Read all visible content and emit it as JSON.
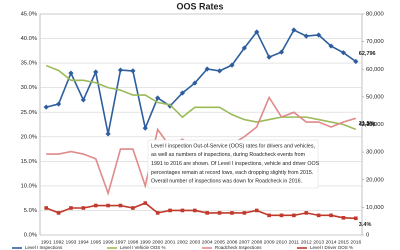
{
  "chart_data": {
    "type": "line",
    "title": "OOS Rates",
    "categories": [
      "1991",
      "1992",
      "1993",
      "1994",
      "1995",
      "1996",
      "1997",
      "1998",
      "1999",
      "2000",
      "2001",
      "2002",
      "2003",
      "2004",
      "2005",
      "2006",
      "2007",
      "2008",
      "2009",
      "2010",
      "2011",
      "2012",
      "2013",
      "2014",
      "2015",
      "2016"
    ],
    "ylim": [
      0,
      45
    ],
    "yticks": [
      {
        "value": 0,
        "label": "0.0%"
      },
      {
        "value": 5,
        "label": "5.0%"
      },
      {
        "value": 10,
        "label": "10.0%"
      },
      {
        "value": 15,
        "label": "15.0%"
      },
      {
        "value": 20,
        "label": "20.0%"
      },
      {
        "value": 25,
        "label": "25.0%"
      },
      {
        "value": 30,
        "label": "30.0%"
      },
      {
        "value": 35,
        "label": "35.0%"
      },
      {
        "value": 40,
        "label": "40.0%"
      },
      {
        "value": 45,
        "label": "45.0%"
      }
    ],
    "y2lim": [
      0,
      80000
    ],
    "y2ticks": [
      0,
      {
        "value": 10000,
        "label": "10,000"
      },
      {
        "value": 20000,
        "label": "20,000"
      },
      {
        "value": 30000,
        "label": "30,000"
      },
      {
        "value": 40000,
        "label": "40,000"
      },
      {
        "value": 50000,
        "label": "50,000"
      },
      {
        "value": 60000,
        "label": "60,000"
      },
      {
        "value": 70000,
        "label": "70,000"
      },
      {
        "value": 80000,
        "label": "80,000"
      }
    ],
    "grid": true,
    "series": [
      {
        "name": "Level I Inspections",
        "color": "#2e5e9e",
        "axis": "y2",
        "marker": "diamond",
        "values": [
          46300,
          47400,
          58600,
          48900,
          59000,
          36600,
          59700,
          59400,
          38700,
          49600,
          46700,
          51400,
          55000,
          60100,
          59400,
          61500,
          67700,
          73500,
          64400,
          66200,
          74200,
          72000,
          72400,
          68400,
          66000,
          62796
        ],
        "value_labels": [
          null,
          null,
          null,
          null,
          null,
          null,
          null,
          null,
          null,
          null,
          null,
          null,
          null,
          null,
          null,
          null,
          null,
          null,
          null,
          null,
          null,
          null,
          null,
          null,
          null,
          "62,796"
        ]
      },
      {
        "name": "Level I Vehicle OOS %",
        "color": "#9bbb59",
        "axis": "y",
        "marker": "none",
        "values": [
          34.5,
          33.5,
          31.5,
          31.5,
          31,
          30,
          29.5,
          28.5,
          28.5,
          27,
          26.5,
          24,
          26,
          26,
          26,
          24.5,
          23.5,
          23,
          23.5,
          24,
          24,
          24,
          23.5,
          23,
          22.5,
          21.5
        ],
        "value_labels": [
          null,
          null,
          null,
          null,
          null,
          null,
          null,
          null,
          null,
          null,
          null,
          null,
          null,
          null,
          null,
          null,
          null,
          null,
          null,
          null,
          null,
          null,
          null,
          null,
          null,
          "21.5%"
        ]
      },
      {
        "name": "Roadcheck Inspections",
        "color": "#e08a8a",
        "axis": "y2",
        "marker": "none",
        "values": [
          29300,
          29300,
          30200,
          29300,
          27600,
          15100,
          31100,
          31100,
          17800,
          38200,
          32000,
          34700,
          31100,
          31100,
          29300,
          32900,
          35600,
          39100,
          49800,
          42700,
          44400,
          40900,
          40900,
          39100,
          40900,
          42236
        ],
        "value_labels": [
          null,
          null,
          null,
          null,
          null,
          null,
          null,
          null,
          null,
          null,
          null,
          null,
          null,
          null,
          null,
          null,
          null,
          null,
          null,
          null,
          null,
          null,
          null,
          null,
          null,
          "42,236"
        ]
      },
      {
        "name": "Level I Driver OOS %",
        "color": "#c0392b",
        "axis": "y",
        "marker": "square",
        "values": [
          5.5,
          4.5,
          5.5,
          5.5,
          6,
          6,
          6,
          5.5,
          6.5,
          4.5,
          5,
          5,
          5,
          4.5,
          4.5,
          4.5,
          4.5,
          5,
          4,
          4,
          4,
          4.5,
          4,
          4,
          3.5,
          3.4
        ],
        "value_labels": [
          null,
          null,
          null,
          null,
          null,
          null,
          null,
          null,
          null,
          null,
          null,
          null,
          null,
          null,
          null,
          null,
          null,
          null,
          null,
          null,
          null,
          null,
          null,
          null,
          null,
          "3.4%"
        ]
      }
    ],
    "annotation": [
      "Level I inspection Out-of-Service (OOS) rates for drivers and vehicles,",
      "as well as numbers of inspections, during Roadcheck events from",
      "1991 to 2016 are shown.  Of Level I inspections, vehicle and driver OOS",
      "percentages remain at record lows, each dropping slightly from 2015.",
      "Overall number of inspections was down for Roadcheck in 2016."
    ]
  }
}
